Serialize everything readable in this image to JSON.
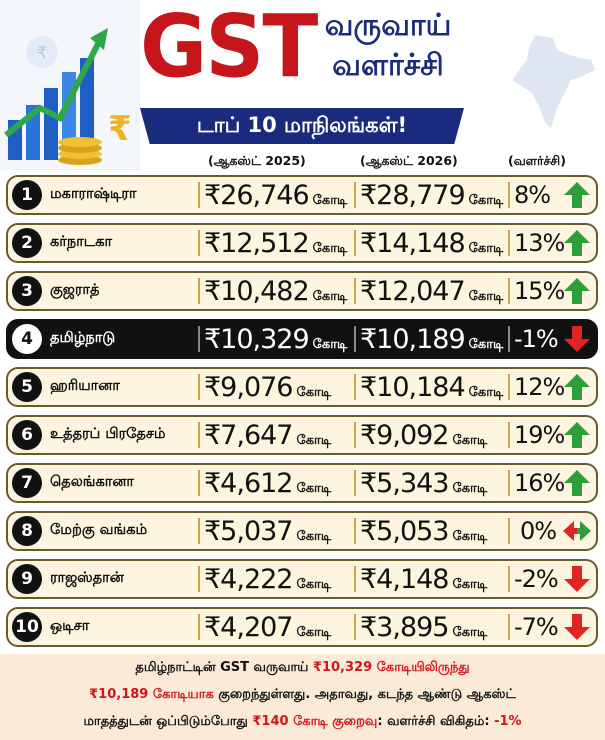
{
  "header": {
    "title": "GST",
    "subtitle_line1": "வருவாய்",
    "subtitle_line2": "வளர்ச்சி",
    "banner": "டாப் 10 மாநிலங்கள்!"
  },
  "columns": {
    "prev": "(ஆகஸ்ட் 2025)",
    "curr": "(ஆகஸ்ட் 2026)",
    "growth": "(வளர்ச்சி)"
  },
  "unit": "கோடி",
  "rows": [
    {
      "rank": "1",
      "state": "மகாராஷ்டிரா",
      "prev": "₹26,746",
      "curr": "₹28,779",
      "growth": "8%",
      "trend": "up"
    },
    {
      "rank": "2",
      "state": "கர்நாடகா",
      "prev": "₹12,512",
      "curr": "₹14,148",
      "growth": "13%",
      "trend": "up"
    },
    {
      "rank": "3",
      "state": "குஜராத்",
      "prev": "₹10,482",
      "curr": "₹12,047",
      "growth": "15%",
      "trend": "up"
    },
    {
      "rank": "4",
      "state": "தமிழ்நாடு",
      "prev": "₹10,329",
      "curr": "₹10,189",
      "growth": "-1%",
      "trend": "down"
    },
    {
      "rank": "5",
      "state": "ஹரியானா",
      "prev": "₹9,076",
      "curr": "₹10,184",
      "growth": "12%",
      "trend": "up"
    },
    {
      "rank": "6",
      "state": "உத்தரப் பிரதேசம்",
      "prev": "₹7,647",
      "curr": "₹9,092",
      "growth": "19%",
      "trend": "up"
    },
    {
      "rank": "7",
      "state": "தெலங்கானா",
      "prev": "₹4,612",
      "curr": "₹5,343",
      "growth": "16%",
      "trend": "up"
    },
    {
      "rank": "8",
      "state": "மேற்கு வங்கம்",
      "prev": "₹5,037",
      "curr": "₹5,053",
      "growth": "0%",
      "trend": "flat"
    },
    {
      "rank": "9",
      "state": "ராஜஸ்தான்",
      "prev": "₹4,222",
      "curr": "₹4,148",
      "growth": "-2%",
      "trend": "down"
    },
    {
      "rank": "10",
      "state": "ஒடிசா",
      "prev": "₹4,207",
      "curr": "₹3,895",
      "growth": "-7%",
      "trend": "down"
    }
  ],
  "footer": {
    "l1_a": "தமிழ்நாட்டின் GST வருவாய் ",
    "l1_b": "₹10,329 கோடியிலிருந்து",
    "l2_a": "₹10,189 கோடியாக",
    "l2_b": " குறைந்துள்ளது. அதாவது, கடந்த ஆண்டு ஆகஸ்ட்",
    "l3_a": "மாதத்துடன் ஒப்பிடும்போது ",
    "l3_b": "₹140 கோடி குறைவு",
    "l3_c": ": வளர்ச்சி விகிதம்: ",
    "l3_d": "-1%"
  },
  "colors": {
    "title_red": "#c6151b",
    "banner_blue": "#1a2a7c",
    "row_bg": "#fdf5df",
    "up_green": "#2f9e3a",
    "down_red": "#e02424"
  }
}
